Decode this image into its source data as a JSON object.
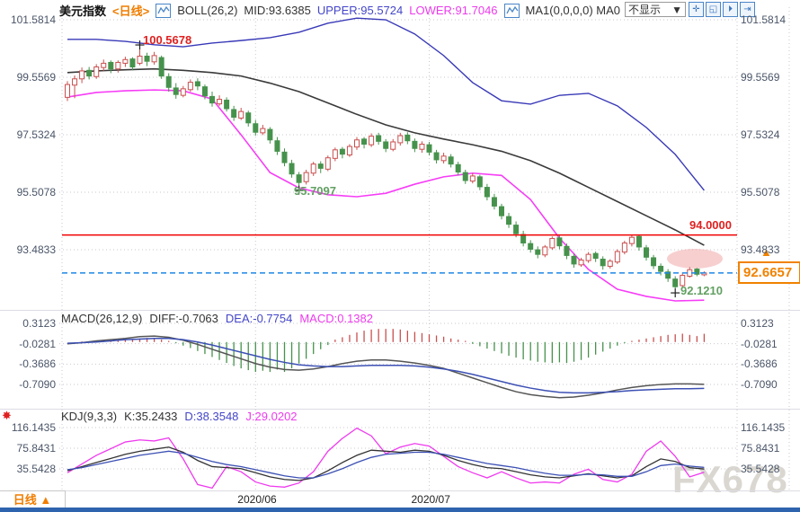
{
  "header": {
    "symbol": "美元指数",
    "period": "<日线>",
    "boll": "BOLL(26,2)",
    "mid": "MID:93.6385",
    "upper": "UPPER:95.5724",
    "lower": "LOWER:91.7046",
    "ma": "MA1(0,0,0,0) MA0",
    "dropdown": "不显示",
    "dropdown_caret": "▼",
    "toolbar": [
      {
        "name": "crosshair",
        "glyph": "✛"
      },
      {
        "name": "zoom-region",
        "glyph": "◱"
      },
      {
        "name": "zoom-in",
        "glyph": "⏵"
      },
      {
        "name": "pan-right",
        "glyph": "⇥"
      }
    ]
  },
  "annotations": {
    "peak": "100.5678",
    "trough": "95.7097",
    "level": "94.0000",
    "current": "92.6657",
    "low": "92.1210"
  },
  "macd": {
    "title": "MACD(26,12,9)",
    "diff": "DIFF:-0.7063",
    "dea": "DEA:-0.7754",
    "macd": "MACD:0.1382"
  },
  "kdj": {
    "title": "KDJ(9,3,3)",
    "k": "K:35.2433",
    "d": "D:38.3548",
    "j": "J:29.0202",
    "icon": "✸"
  },
  "bottom_tab": {
    "label": "日线",
    "arrow": "▲"
  },
  "watermark": "FX678",
  "colors": {
    "up": "#c94f4f",
    "down": "#46924c",
    "boll_upper": "#3939b8",
    "boll_mid": "#3a3a3a",
    "boll_lower": "#f63df6",
    "diff_line": "#555555",
    "dea_line": "#3c50b4",
    "k_line": "#333333",
    "d_line": "#3c50b4",
    "j_line": "#ee3bee",
    "level_red": "#f00000",
    "dashed_blue": "#1e88e5",
    "grid": "#c9c9d2",
    "highlight": "#f0a0a0",
    "accent_orange": "#f08200"
  },
  "chart_data": {
    "type": "candlestick+indicators",
    "months": [
      {
        "label": "2020/06",
        "i": 26
      },
      {
        "label": "2020/07",
        "i": 50
      }
    ],
    "main": {
      "ticks": [
        101.5814,
        99.5569,
        97.5324,
        95.5078,
        93.4833
      ],
      "level_line": 94.0,
      "current_price": 92.6657,
      "peak_value": 100.5678,
      "trough_value": 95.7097,
      "low_value": 92.121,
      "candles": [
        [
          98.85,
          99.42,
          98.72,
          99.3
        ],
        [
          99.28,
          99.62,
          98.82,
          99.5
        ],
        [
          99.5,
          99.9,
          99.35,
          99.78
        ],
        [
          99.8,
          99.92,
          99.48,
          99.6
        ],
        [
          99.58,
          100.02,
          99.5,
          99.92
        ],
        [
          99.9,
          100.18,
          99.78,
          100.05
        ],
        [
          100.08,
          100.15,
          99.7,
          99.85
        ],
        [
          99.85,
          100.15,
          99.72,
          100.08
        ],
        [
          100.05,
          100.28,
          99.92,
          100.18
        ],
        [
          100.2,
          100.26,
          99.8,
          99.92
        ],
        [
          100.05,
          100.5678,
          99.98,
          100.3
        ],
        [
          100.3,
          100.42,
          99.95,
          100.12
        ],
        [
          100.1,
          100.45,
          100.0,
          100.32
        ],
        [
          100.25,
          100.32,
          99.5,
          99.6
        ],
        [
          99.58,
          99.7,
          99.05,
          99.2
        ],
        [
          99.18,
          99.35,
          98.8,
          98.95
        ],
        [
          98.92,
          99.25,
          98.85,
          99.15
        ],
        [
          99.12,
          99.48,
          99.05,
          99.38
        ],
        [
          99.4,
          99.52,
          99.1,
          99.25
        ],
        [
          99.22,
          99.3,
          98.78,
          98.9
        ],
        [
          98.88,
          99.05,
          98.52,
          98.65
        ],
        [
          98.62,
          98.92,
          98.55,
          98.78
        ],
        [
          98.75,
          98.85,
          98.35,
          98.45
        ],
        [
          98.42,
          98.55,
          98.02,
          98.15
        ],
        [
          98.12,
          98.48,
          98.05,
          98.35
        ],
        [
          98.3,
          98.38,
          97.82,
          97.95
        ],
        [
          97.92,
          98.05,
          97.5,
          97.62
        ],
        [
          97.6,
          97.88,
          97.52,
          97.75
        ],
        [
          97.72,
          97.8,
          97.22,
          97.35
        ],
        [
          97.32,
          97.45,
          96.82,
          96.95
        ],
        [
          96.92,
          97.05,
          96.42,
          96.55
        ],
        [
          96.52,
          96.65,
          96.02,
          96.15
        ],
        [
          96.12,
          96.22,
          95.7097,
          95.85
        ],
        [
          95.88,
          96.3,
          95.78,
          96.2
        ],
        [
          96.18,
          96.58,
          96.08,
          96.5
        ],
        [
          96.5,
          96.6,
          96.18,
          96.35
        ],
        [
          96.32,
          96.8,
          96.25,
          96.72
        ],
        [
          96.7,
          97.08,
          96.6,
          97.0
        ],
        [
          97.02,
          97.1,
          96.7,
          96.85
        ],
        [
          96.82,
          97.2,
          96.75,
          97.12
        ],
        [
          97.1,
          97.45,
          97.0,
          97.35
        ],
        [
          97.38,
          97.45,
          97.05,
          97.2
        ],
        [
          97.18,
          97.58,
          97.1,
          97.48
        ],
        [
          97.5,
          97.6,
          97.18,
          97.3
        ],
        [
          97.28,
          97.38,
          96.92,
          97.05
        ],
        [
          97.02,
          97.38,
          96.95,
          97.28
        ],
        [
          97.25,
          97.6,
          97.15,
          97.5
        ],
        [
          97.52,
          97.62,
          97.2,
          97.32
        ],
        [
          97.3,
          97.4,
          96.92,
          97.05
        ],
        [
          97.02,
          97.3,
          96.9,
          97.2
        ],
        [
          97.18,
          97.28,
          96.8,
          96.92
        ],
        [
          96.9,
          97.0,
          96.52,
          96.65
        ],
        [
          96.62,
          96.9,
          96.52,
          96.78
        ],
        [
          96.75,
          96.85,
          96.38,
          96.5
        ],
        [
          96.48,
          96.58,
          96.1,
          96.22
        ],
        [
          96.2,
          96.3,
          95.8,
          95.92
        ],
        [
          95.9,
          96.18,
          95.82,
          96.08
        ],
        [
          96.05,
          96.12,
          95.58,
          95.7
        ],
        [
          95.68,
          95.8,
          95.22,
          95.35
        ],
        [
          95.32,
          95.45,
          94.9,
          95.02
        ],
        [
          95.0,
          95.1,
          94.55,
          94.68
        ],
        [
          94.65,
          94.78,
          94.25,
          94.38
        ],
        [
          94.35,
          94.48,
          93.92,
          94.05
        ],
        [
          94.02,
          94.15,
          93.6,
          93.72
        ],
        [
          93.7,
          93.82,
          93.38,
          93.5
        ],
        [
          93.48,
          93.6,
          93.18,
          93.32
        ],
        [
          93.3,
          93.65,
          93.22,
          93.58
        ],
        [
          93.55,
          93.95,
          93.48,
          93.88
        ],
        [
          93.9,
          93.98,
          93.5,
          93.62
        ],
        [
          93.6,
          93.7,
          93.15,
          93.28
        ],
        [
          93.25,
          93.35,
          92.85,
          92.98
        ],
        [
          92.95,
          93.2,
          92.88,
          93.12
        ],
        [
          93.1,
          93.4,
          93.02,
          93.32
        ],
        [
          93.35,
          93.42,
          93.05,
          93.18
        ],
        [
          93.15,
          93.25,
          92.78,
          92.92
        ],
        [
          92.9,
          93.15,
          92.82,
          93.08
        ],
        [
          93.05,
          93.5,
          92.98,
          93.42
        ],
        [
          93.4,
          93.8,
          93.32,
          93.72
        ],
        [
          93.7,
          94.0,
          93.6,
          93.92
        ],
        [
          93.95,
          94.02,
          93.45,
          93.58
        ],
        [
          93.55,
          93.65,
          93.1,
          93.22
        ],
        [
          93.2,
          93.3,
          92.8,
          92.92
        ],
        [
          92.9,
          93.0,
          92.58,
          92.72
        ],
        [
          92.7,
          92.8,
          92.35,
          92.48
        ],
        [
          92.45,
          92.55,
          92.121,
          92.18
        ],
        [
          92.22,
          92.68,
          92.15,
          92.58
        ],
        [
          92.55,
          92.88,
          92.5,
          92.78
        ],
        [
          92.8,
          92.85,
          92.55,
          92.62
        ],
        [
          92.6,
          92.72,
          92.55,
          92.6657
        ]
      ],
      "band_step": 4,
      "boll_upper": [
        100.89,
        100.89,
        100.82,
        100.7,
        100.63,
        100.76,
        100.85,
        100.95,
        101.14,
        101.46,
        101.64,
        101.58,
        101.08,
        100.32,
        99.37,
        98.73,
        98.61,
        98.92,
        98.99,
        98.55,
        97.79,
        96.84,
        95.5724
      ],
      "boll_mid": [
        99.72,
        99.78,
        99.82,
        99.85,
        99.8,
        99.72,
        99.6,
        99.35,
        99.05,
        98.65,
        98.25,
        97.88,
        97.6,
        97.38,
        97.18,
        96.95,
        96.62,
        96.18,
        95.68,
        95.18,
        94.68,
        94.18,
        93.6385
      ],
      "boll_lower": [
        98.86,
        99.02,
        99.08,
        99.11,
        99.08,
        98.79,
        97.53,
        96.2,
        95.66,
        95.42,
        95.35,
        95.47,
        95.79,
        96.05,
        96.18,
        96.1,
        95.25,
        93.89,
        92.79,
        92.09,
        91.84,
        91.68,
        91.7046
      ]
    },
    "macd": {
      "ticks": [
        0.3123,
        -0.0281,
        -0.3686,
        -0.709
      ],
      "hist": [
        0,
        0,
        0.01,
        0.01,
        0.02,
        0.03,
        0.03,
        0.04,
        0.05,
        0.05,
        0.06,
        0.07,
        0.06,
        0.04,
        0.02,
        -0.02,
        -0.06,
        -0.1,
        -0.15,
        -0.2,
        -0.25,
        -0.3,
        -0.35,
        -0.4,
        -0.44,
        -0.47,
        -0.5,
        -0.48,
        -0.5,
        -0.46,
        -0.5,
        -0.44,
        -0.36,
        -0.28,
        -0.2,
        -0.12,
        -0.05,
        0.04,
        0.08,
        0.12,
        0.16,
        0.19,
        0.21,
        0.22,
        0.22,
        0.22,
        0.21,
        0.19,
        0.17,
        0.15,
        0.13,
        0.11,
        0.09,
        0.06,
        0.04,
        0.02,
        -0.03,
        -0.07,
        -0.11,
        -0.15,
        -0.19,
        -0.23,
        -0.26,
        -0.29,
        -0.31,
        -0.33,
        -0.34,
        -0.35,
        -0.34,
        -0.35,
        -0.33,
        -0.3,
        -0.26,
        -0.21,
        -0.16,
        -0.11,
        -0.06,
        -0.02,
        0.02,
        0.04,
        0.06,
        0.08,
        0.1,
        0.12,
        0.13,
        0.14,
        0.12,
        0.1,
        0.1382
      ],
      "line_step": 2,
      "diff": [
        -0.03,
        -0.01,
        0.02,
        0.04,
        0.06,
        0.09,
        0.1,
        0.08,
        0.03,
        -0.04,
        -0.12,
        -0.2,
        -0.28,
        -0.36,
        -0.42,
        -0.46,
        -0.47,
        -0.45,
        -0.41,
        -0.36,
        -0.32,
        -0.3,
        -0.3,
        -0.32,
        -0.35,
        -0.39,
        -0.44,
        -0.52,
        -0.6,
        -0.68,
        -0.76,
        -0.83,
        -0.88,
        -0.91,
        -0.93,
        -0.92,
        -0.89,
        -0.85,
        -0.8,
        -0.76,
        -0.73,
        -0.71,
        -0.7,
        -0.7,
        -0.7063
      ],
      "dea": [
        -0.02,
        -0.01,
        0.0,
        0.02,
        0.04,
        0.05,
        0.06,
        0.06,
        0.04,
        0.0,
        -0.05,
        -0.11,
        -0.17,
        -0.23,
        -0.29,
        -0.34,
        -0.38,
        -0.4,
        -0.41,
        -0.41,
        -0.4,
        -0.39,
        -0.39,
        -0.39,
        -0.4,
        -0.42,
        -0.45,
        -0.49,
        -0.54,
        -0.6,
        -0.66,
        -0.72,
        -0.77,
        -0.81,
        -0.84,
        -0.85,
        -0.85,
        -0.84,
        -0.83,
        -0.81,
        -0.8,
        -0.79,
        -0.78,
        -0.78,
        -0.7754
      ]
    },
    "kdj": {
      "ticks": [
        116.1435,
        75.8431,
        35.5428
      ],
      "line_step": 2,
      "k": [
        32,
        40,
        48,
        56,
        64,
        70,
        74,
        78,
        68,
        52,
        40,
        38,
        36,
        28,
        20,
        15,
        13,
        18,
        32,
        48,
        62,
        72,
        70,
        68,
        72,
        70,
        62,
        52,
        44,
        38,
        36,
        30,
        24,
        20,
        18,
        22,
        26,
        22,
        18,
        22,
        40,
        55,
        50,
        38,
        35.24
      ],
      "d": [
        34,
        38,
        44,
        50,
        56,
        62,
        66,
        70,
        66,
        58,
        50,
        44,
        40,
        34,
        28,
        22,
        18,
        18,
        26,
        36,
        48,
        58,
        64,
        66,
        68,
        68,
        64,
        58,
        52,
        46,
        42,
        38,
        32,
        27,
        23,
        23,
        25,
        24,
        21,
        21,
        30,
        42,
        45,
        41,
        38.35
      ],
      "j": [
        28,
        45,
        62,
        75,
        88,
        92,
        90,
        96,
        55,
        5,
        -2,
        40,
        30,
        10,
        2,
        0,
        8,
        30,
        70,
        95,
        115,
        100,
        65,
        78,
        85,
        80,
        60,
        40,
        28,
        18,
        30,
        18,
        8,
        10,
        8,
        25,
        35,
        15,
        10,
        25,
        70,
        90,
        60,
        20,
        29.02
      ]
    }
  }
}
